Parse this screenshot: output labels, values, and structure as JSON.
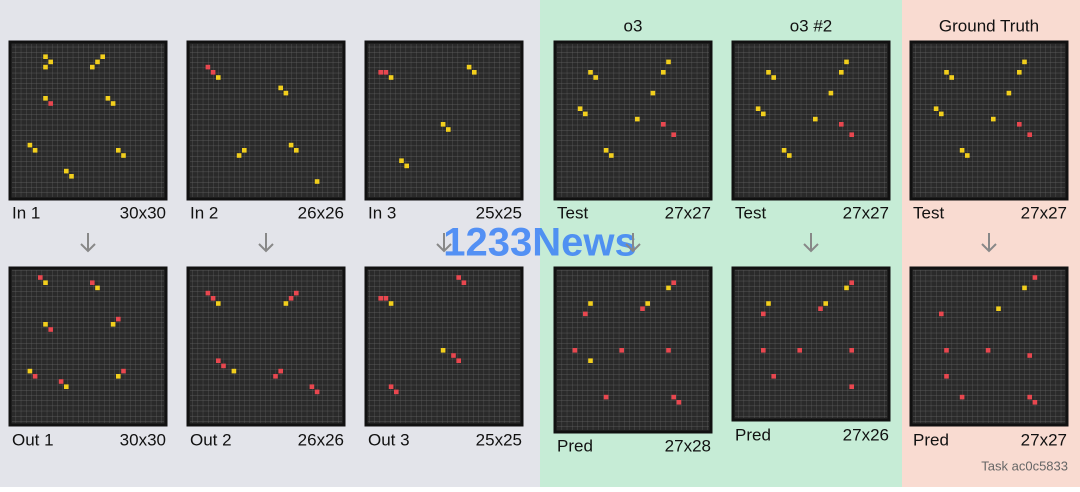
{
  "headers": {
    "o3": "o3",
    "o3_2": "o3 #2",
    "truth": "Ground Truth"
  },
  "panels": [
    {
      "label": "In 1",
      "size": "30x30"
    },
    {
      "label": "In 2",
      "size": "26x26"
    },
    {
      "label": "In 3",
      "size": "25x25"
    },
    {
      "label": "Out 1",
      "size": "30x30"
    },
    {
      "label": "Out 2",
      "size": "26x26"
    },
    {
      "label": "Out 3",
      "size": "25x25"
    },
    {
      "label": "Test",
      "size": "27x27"
    },
    {
      "label": "Test",
      "size": "27x27"
    },
    {
      "label": "Test",
      "size": "27x27"
    },
    {
      "label": "Pred",
      "size": "27x28"
    },
    {
      "label": "Pred",
      "size": "27x26"
    },
    {
      "label": "Pred",
      "size": "27x27"
    }
  ],
  "watermark": "1233News",
  "task": "Task ac0c5833"
}
